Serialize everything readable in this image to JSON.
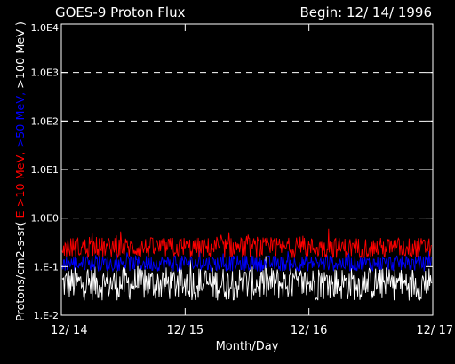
{
  "chart_data": {
    "type": "line",
    "title": "GOES-9 Proton Flux",
    "begin_label": "Begin: 12/ 14/ 1996",
    "xlabel": "Month/Day",
    "ylabel_parts": [
      {
        "text": "Protons/cm2-s-sr(",
        "color": "#ffffff"
      },
      {
        "text": " E >10 MeV, ",
        "color": "#ff0000"
      },
      {
        "text": ">50 MeV, ",
        "color": "#0000ff"
      },
      {
        "text": ">100 MeV )",
        "color": "#ffffff"
      }
    ],
    "y_scale": "log",
    "ylim": [
      0.01,
      10000
    ],
    "y_ticks": [
      {
        "value": 0.01,
        "label": "1.E-2"
      },
      {
        "value": 0.1,
        "label": "1.E-1"
      },
      {
        "value": 1,
        "label": "1.0E0"
      },
      {
        "value": 10,
        "label": "1.0E1"
      },
      {
        "value": 100,
        "label": "1.0E2"
      },
      {
        "value": 1000,
        "label": "1.0E3"
      },
      {
        "value": 10000,
        "label": "1.0E4"
      }
    ],
    "dashed_gridlines_at": [
      1,
      10,
      100,
      1000
    ],
    "xlim": [
      "1996-12-14",
      "1996-12-17"
    ],
    "x_ticks": [
      {
        "value": "1996-12-14",
        "label": "12/ 14"
      },
      {
        "value": "1996-12-15",
        "label": "12/ 15"
      },
      {
        "value": "1996-12-16",
        "label": "12/ 16"
      },
      {
        "value": "1996-12-17",
        "label": "12/ 17"
      }
    ],
    "series": [
      {
        "name": "E >10 MeV",
        "color": "#ff0000",
        "typical_range": [
          0.15,
          0.4
        ],
        "peak": 0.6
      },
      {
        "name": ">50 MeV",
        "color": "#0000ff",
        "typical_range": [
          0.08,
          0.17
        ]
      },
      {
        "name": ">100 MeV",
        "color": "#ffffff",
        "typical_range": [
          0.02,
          0.1
        ]
      }
    ]
  }
}
